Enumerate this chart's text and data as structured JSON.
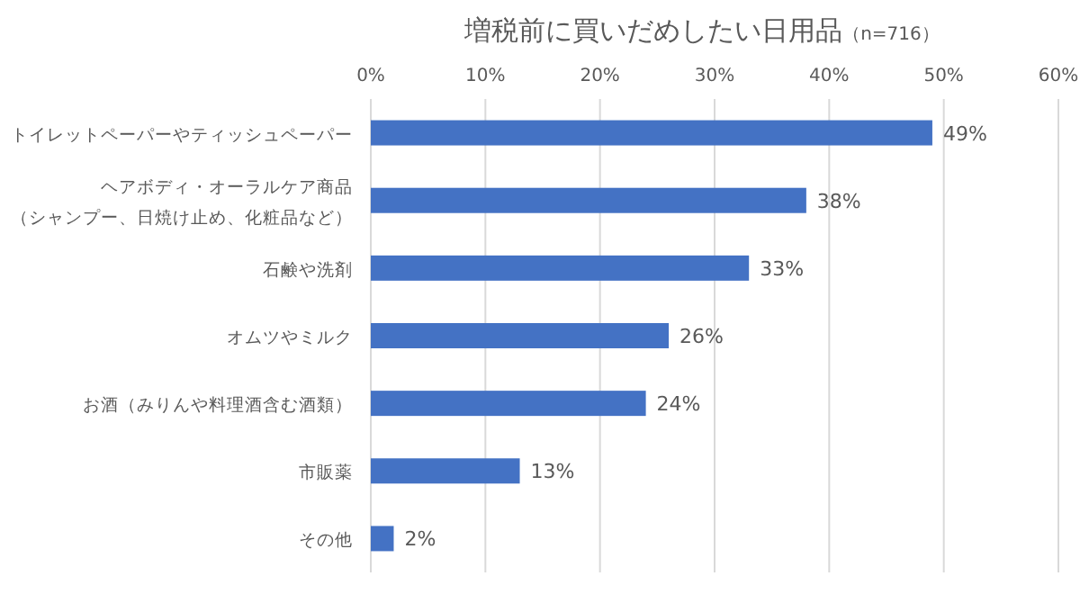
{
  "chart_data": {
    "type": "bar",
    "orientation": "horizontal",
    "title": "増税前に買いだめしたい日用品",
    "subtitle": "（n=716）",
    "categories": [
      "トイレットペーパーやティッシュペーパー",
      "ヘアボディ・オーラルケア商品（シャンプー、日焼け止め、化粧品など）",
      "石鹸や洗剤",
      "オムツやミルク",
      "お酒（みりんや料理酒含む酒類）",
      "市販薬",
      "その他"
    ],
    "values": [
      49,
      38,
      33,
      26,
      24,
      13,
      2
    ],
    "value_labels": [
      "49%",
      "38%",
      "33%",
      "26%",
      "24%",
      "13%",
      "2%"
    ],
    "color": "#4472c4",
    "xlim": [
      0,
      60
    ],
    "xticks": [
      {
        "value": 0,
        "label": "0%"
      },
      {
        "value": 10,
        "label": "10%"
      },
      {
        "value": 20,
        "label": "20%"
      },
      {
        "value": 30,
        "label": "30%"
      },
      {
        "value": 40,
        "label": "40%"
      },
      {
        "value": 50,
        "label": "50%"
      },
      {
        "value": 60,
        "label": "60%"
      }
    ],
    "grid": "x"
  }
}
